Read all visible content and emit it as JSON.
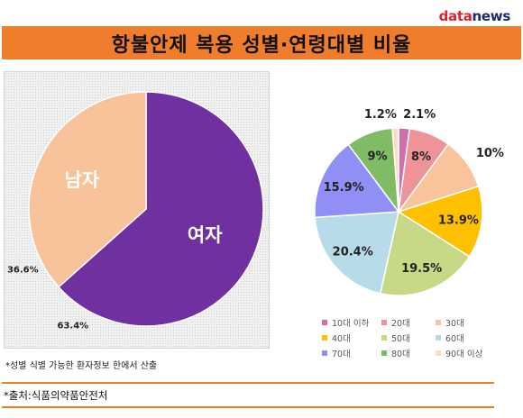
{
  "logo": {
    "part1": "data",
    "part2": "news"
  },
  "title": "항불안제 복용 성별·연령대별 비율",
  "chart_data": [
    {
      "type": "pie",
      "slices": [
        {
          "label": "여자",
          "value": 63.4,
          "value_label": "63.4%",
          "color": "#7030a0"
        },
        {
          "label": "남자",
          "value": 36.6,
          "value_label": "36.6%",
          "color": "#f8c29a"
        }
      ]
    },
    {
      "type": "pie",
      "slices": [
        {
          "label": "10대 이하",
          "value": 2.1,
          "value_label": "2.1%",
          "color": "#d06fa8"
        },
        {
          "label": "20대",
          "value": 8,
          "value_label": "8%",
          "color": "#ee939a"
        },
        {
          "label": "30대",
          "value": 10,
          "value_label": "10%",
          "color": "#f9c39c"
        },
        {
          "label": "40대",
          "value": 13.9,
          "value_label": "13.9%",
          "color": "#ffc000"
        },
        {
          "label": "50대",
          "value": 19.5,
          "value_label": "19.5%",
          "color": "#c7d886"
        },
        {
          "label": "60대",
          "value": 20.4,
          "value_label": "20.4%",
          "color": "#b7dbe8"
        },
        {
          "label": "70대",
          "value": 15.9,
          "value_label": "15.9%",
          "color": "#8f8ff5"
        },
        {
          "label": "80대",
          "value": 9,
          "value_label": "9%",
          "color": "#80bb65"
        },
        {
          "label": "90대 이상",
          "value": 1.2,
          "value_label": "1.2%",
          "color": "#fadcc6"
        }
      ],
      "legend_position": "bottom"
    }
  ],
  "note": "*성별 식별 가능한 환자정보 한에서 산출",
  "source": "*출처:식품의약품안전처"
}
